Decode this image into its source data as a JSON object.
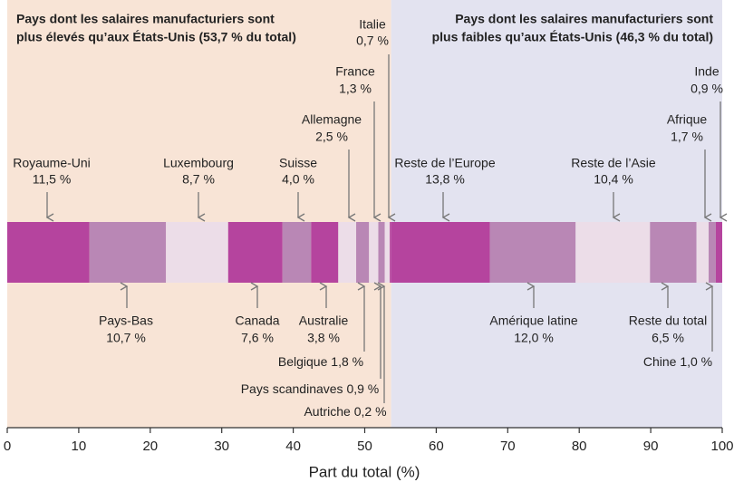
{
  "chart_data": {
    "type": "stacked-share-bar",
    "groups": [
      {
        "title": [
          "Pays dont les salaires manufacturiers sont",
          "plus élevés qu’aux États-Unis (53,7 % du total)"
        ],
        "color": "#f8e4d6",
        "segments": [
          {
            "name": "Royaume-Uni",
            "value": 11.5,
            "value_label": "11,5 %",
            "color": "#b5449e"
          },
          {
            "name": "Pays-Bas",
            "value": 10.7,
            "value_label": "10,7 %",
            "color": "#b987b5"
          },
          {
            "name": "Luxembourg",
            "value": 8.7,
            "value_label": "8,7 %",
            "color": "#ecdde8"
          },
          {
            "name": "Canada",
            "value": 7.6,
            "value_label": "7,6 %",
            "color": "#b5449e"
          },
          {
            "name": "Suisse",
            "value": 4.0,
            "value_label": "4,0 %",
            "color": "#b987b5"
          },
          {
            "name": "Australie",
            "value": 3.8,
            "value_label": "3,8 %",
            "color": "#b5449e"
          },
          {
            "name": "Allemagne",
            "value": 2.5,
            "value_label": "2,5 %",
            "color": "#ecdde8"
          },
          {
            "name": "Belgique",
            "value": 1.8,
            "value_label": "1,8 %",
            "color": "#b987b5"
          },
          {
            "name": "France",
            "value": 1.3,
            "value_label": "1,3 %",
            "color": "#ecdde8"
          },
          {
            "name": "Pays scandinaves",
            "value": 0.9,
            "value_label": "0,9 %",
            "color": "#b987b5"
          },
          {
            "name": "Italie",
            "value": 0.7,
            "value_label": "0,7 %",
            "color": "#ecdde8"
          },
          {
            "name": "Autriche",
            "value": 0.2,
            "value_label": "0,2 %",
            "color": "#b5449e"
          }
        ]
      },
      {
        "title": [
          "Pays dont les salaires manufacturiers sont",
          "plus faibles qu’aux États-Unis (46,3 % du total)"
        ],
        "color": "#e3e3f0",
        "segments": [
          {
            "name": "Reste de l’Europe",
            "value": 13.8,
            "value_label": "13,8 %",
            "color": "#b5449e"
          },
          {
            "name": "Amérique latine",
            "value": 12.0,
            "value_label": "12,0 %",
            "color": "#b987b5"
          },
          {
            "name": "Reste de l’Asie",
            "value": 10.4,
            "value_label": "10,4 %",
            "color": "#ecdde8"
          },
          {
            "name": "Reste du total",
            "value": 6.5,
            "value_label": "6,5 %",
            "color": "#b987b5"
          },
          {
            "name": "Afrique",
            "value": 1.7,
            "value_label": "1,7 %",
            "color": "#ecdde8"
          },
          {
            "name": "Chine",
            "value": 1.0,
            "value_label": "1,0 %",
            "color": "#b987b5"
          },
          {
            "name": "Inde",
            "value": 0.9,
            "value_label": "0,9 %",
            "color": "#b5449e"
          }
        ]
      }
    ],
    "xlabel": "Part du total (%)",
    "xlim": [
      0,
      100
    ],
    "xticks": [
      0,
      10,
      20,
      30,
      40,
      50,
      60,
      70,
      80,
      90,
      100
    ]
  }
}
